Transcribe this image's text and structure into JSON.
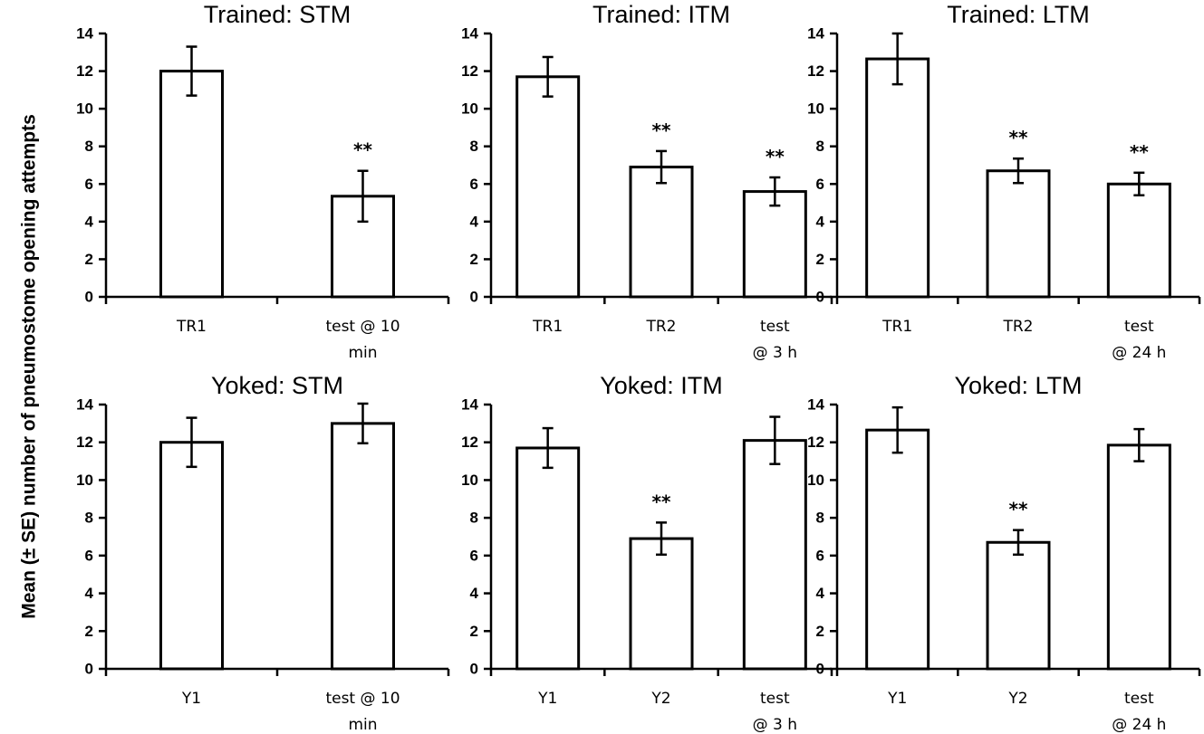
{
  "y_axis_label": "Mean (± SE) number of pneumostome opening attempts",
  "chart_data": [
    {
      "type": "bar",
      "title": "Trained: STM",
      "categories": [
        [
          "TR1"
        ],
        [
          "test @ 10",
          "min"
        ]
      ],
      "values": [
        12.0,
        5.35
      ],
      "errors": [
        1.3,
        1.35
      ],
      "significance": [
        "",
        "**"
      ],
      "ylim": [
        0,
        14
      ],
      "yticks": [
        0,
        2,
        4,
        6,
        8,
        10,
        12,
        14
      ]
    },
    {
      "type": "bar",
      "title": "Trained: ITM",
      "categories": [
        [
          "TR1"
        ],
        [
          "TR2"
        ],
        [
          "test",
          "@ 3 h"
        ]
      ],
      "values": [
        11.7,
        6.9,
        5.6
      ],
      "errors": [
        1.05,
        0.85,
        0.75
      ],
      "significance": [
        "",
        "**",
        "**"
      ],
      "ylim": [
        0,
        14
      ],
      "yticks": [
        0,
        2,
        4,
        6,
        8,
        10,
        12,
        14
      ]
    },
    {
      "type": "bar",
      "title": "Trained: LTM",
      "categories": [
        [
          "TR1"
        ],
        [
          "TR2"
        ],
        [
          "test",
          "@ 24 h"
        ]
      ],
      "values": [
        12.65,
        6.7,
        6.0
      ],
      "errors": [
        1.35,
        0.65,
        0.6
      ],
      "significance": [
        "",
        "**",
        "**"
      ],
      "ylim": [
        0,
        14
      ],
      "yticks": [
        0,
        2,
        4,
        6,
        8,
        10,
        12,
        14
      ]
    },
    {
      "type": "bar",
      "title": "Yoked: STM",
      "categories": [
        [
          "Y1"
        ],
        [
          "test @ 10",
          "min"
        ]
      ],
      "values": [
        12.0,
        13.0
      ],
      "errors": [
        1.3,
        1.05
      ],
      "significance": [
        "",
        ""
      ],
      "ylim": [
        0,
        14
      ],
      "yticks": [
        0,
        2,
        4,
        6,
        8,
        10,
        12,
        14
      ]
    },
    {
      "type": "bar",
      "title": "Yoked: ITM",
      "categories": [
        [
          "Y1"
        ],
        [
          "Y2"
        ],
        [
          "test",
          "@ 3 h"
        ]
      ],
      "values": [
        11.7,
        6.9,
        12.1
      ],
      "errors": [
        1.05,
        0.85,
        1.25
      ],
      "significance": [
        "",
        "**",
        ""
      ],
      "ylim": [
        0,
        14
      ],
      "yticks": [
        0,
        2,
        4,
        6,
        8,
        10,
        12,
        14
      ]
    },
    {
      "type": "bar",
      "title": "Yoked: LTM",
      "categories": [
        [
          "Y1"
        ],
        [
          "Y2"
        ],
        [
          "test",
          "@ 24 h"
        ]
      ],
      "values": [
        12.65,
        6.7,
        11.85
      ],
      "errors": [
        1.2,
        0.65,
        0.85
      ],
      "significance": [
        "",
        "**",
        ""
      ],
      "ylim": [
        0,
        14
      ],
      "yticks": [
        0,
        2,
        4,
        6,
        8,
        10,
        12,
        14
      ]
    }
  ]
}
